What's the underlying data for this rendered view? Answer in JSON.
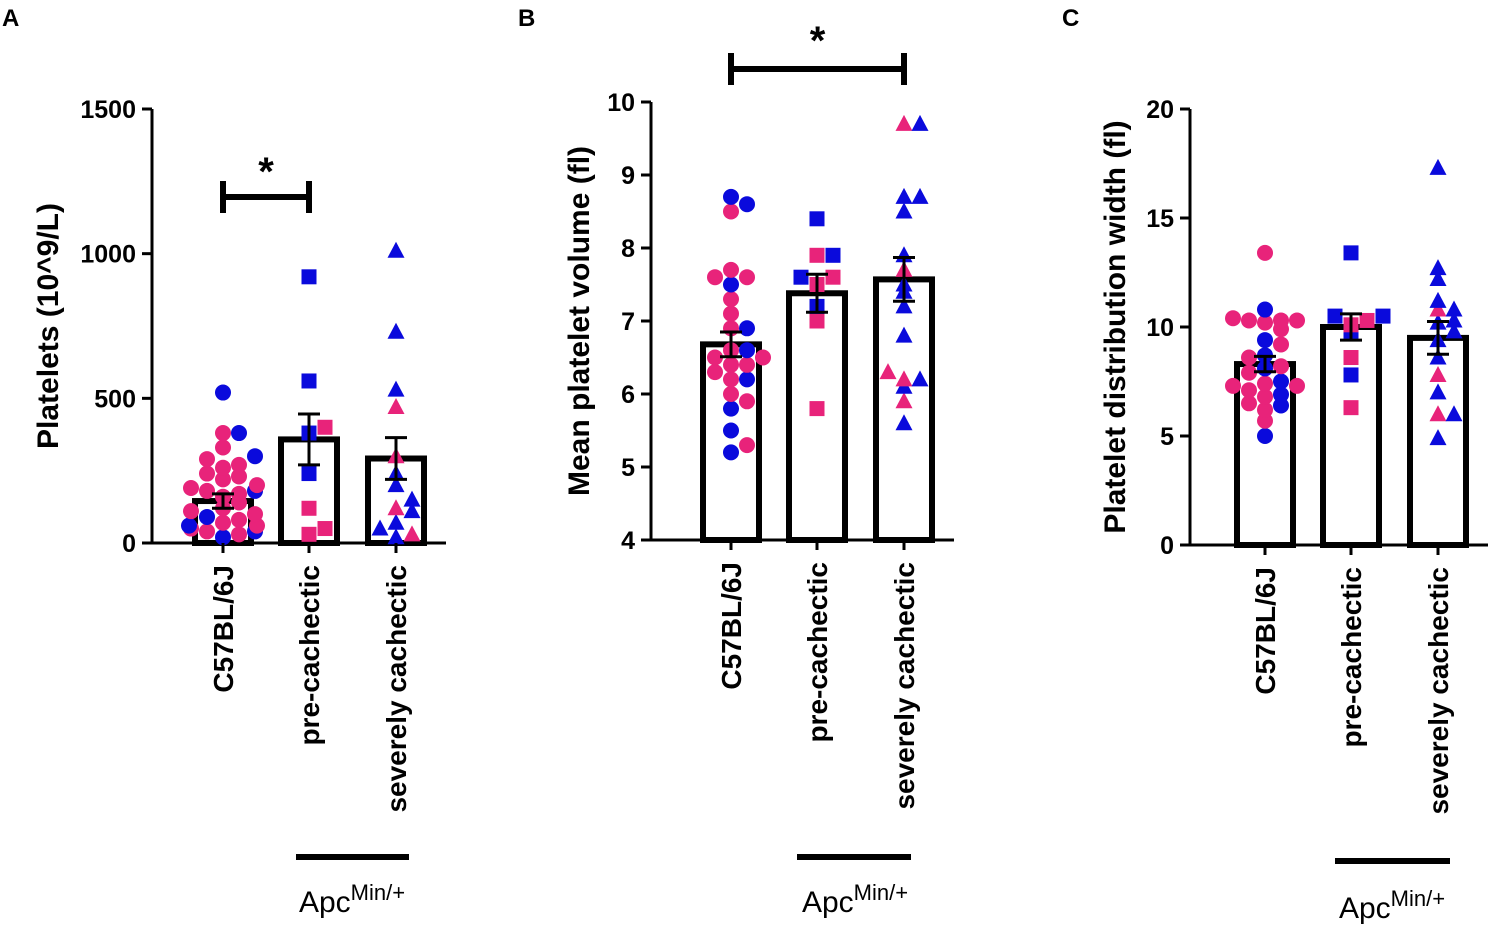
{
  "colors": {
    "female": "#e8237a",
    "male": "#0a0adc",
    "bar_fill": "#ffffff",
    "bar_stroke": "#000000"
  },
  "group_label": {
    "base": "Apc",
    "sup": "Min/+"
  },
  "chart_data": [
    {
      "panel": "A",
      "type": "bar",
      "ylabel": "Platelets (10^9/L)",
      "ylim": [
        0,
        1500
      ],
      "yticks": [
        0,
        500,
        1000,
        1500
      ],
      "categories": [
        "C57BL/6J",
        "pre-cachectic",
        "severely cachectic"
      ],
      "means": [
        145,
        358,
        292
      ],
      "sem": [
        25,
        88,
        72
      ],
      "markers": [
        "circle",
        "square",
        "triangle"
      ],
      "significance": {
        "from": 0,
        "to": 1,
        "label": "*"
      },
      "points": [
        {
          "f": [
            380,
            330,
            290,
            270,
            260,
            240,
            230,
            220,
            200,
            190,
            180,
            170,
            160,
            140,
            120,
            110,
            100,
            80,
            70,
            60,
            50,
            40,
            30
          ],
          "m": [
            520,
            380,
            300,
            180,
            90,
            60,
            40,
            20
          ]
        },
        {
          "f": [
            400,
            120,
            50,
            30
          ],
          "m": [
            920,
            560,
            380,
            240
          ]
        },
        {
          "f": [
            470,
            300,
            120,
            30
          ],
          "m": [
            1010,
            730,
            530,
            240,
            200,
            150,
            110,
            70,
            50,
            20
          ]
        }
      ]
    },
    {
      "panel": "B",
      "type": "bar",
      "ylabel": "Mean platelet volume (fl)",
      "ylim": [
        4,
        10
      ],
      "yticks": [
        4,
        5,
        6,
        7,
        8,
        9,
        10
      ],
      "categories": [
        "C57BL/6J",
        "pre-cachectic",
        "severely cachectic"
      ],
      "means": [
        6.68,
        7.38,
        7.57
      ],
      "sem": [
        0.17,
        0.26,
        0.3
      ],
      "markers": [
        "circle",
        "square",
        "triangle"
      ],
      "significance": {
        "from": 0,
        "to": 2,
        "label": "*"
      },
      "points": [
        {
          "f": [
            8.5,
            7.7,
            7.6,
            7.6,
            7.3,
            7.1,
            6.9,
            6.6,
            6.5,
            6.5,
            6.4,
            6.4,
            6.3,
            6.2,
            6.0,
            5.9,
            5.3
          ],
          "m": [
            8.7,
            8.6,
            7.5,
            6.9,
            6.6,
            6.2,
            5.8,
            5.5,
            5.2
          ]
        },
        {
          "f": [
            7.9,
            7.6,
            7.5,
            7.0,
            5.8
          ],
          "m": [
            8.4,
            7.9,
            7.6,
            7.2
          ]
        },
        {
          "f": [
            9.7,
            7.7,
            6.3,
            6.2,
            5.9
          ],
          "m": [
            9.7,
            8.7,
            8.7,
            8.5,
            7.9,
            7.5,
            7.4,
            7.2,
            6.8,
            6.2,
            6.1,
            5.6
          ]
        }
      ]
    },
    {
      "panel": "C",
      "type": "bar",
      "ylabel": "Platelet distribution width (fl)",
      "ylim": [
        0,
        20
      ],
      "yticks": [
        0,
        5,
        10,
        15,
        20
      ],
      "categories": [
        "C57BL/6J",
        "pre-cachectic",
        "severely cachectic"
      ],
      "means": [
        8.3,
        10.0,
        9.5
      ],
      "sem": [
        0.35,
        0.6,
        0.75
      ],
      "markers": [
        "circle",
        "square",
        "triangle"
      ],
      "significance": null,
      "points": [
        {
          "f": [
            13.4,
            10.4,
            10.3,
            10.3,
            10.3,
            10.2,
            9.9,
            9.2,
            8.6,
            8.2,
            7.9,
            7.4,
            7.3,
            7.3,
            7.1,
            6.8,
            6.5,
            6.2,
            5.7
          ],
          "m": [
            10.8,
            9.4,
            8.7,
            8.1,
            7.5,
            6.9,
            6.4,
            5.0
          ]
        },
        {
          "f": [
            10.3,
            10.1,
            8.6,
            6.3
          ],
          "m": [
            13.4,
            10.5,
            10.5,
            9.8,
            7.8
          ]
        },
        {
          "f": [
            10.8,
            7.8,
            6.0
          ],
          "m": [
            17.3,
            12.7,
            12.2,
            11.2,
            10.8,
            10.3,
            10.2,
            9.8,
            9.4,
            8.6,
            7.0,
            6.0,
            4.9
          ]
        }
      ]
    }
  ]
}
